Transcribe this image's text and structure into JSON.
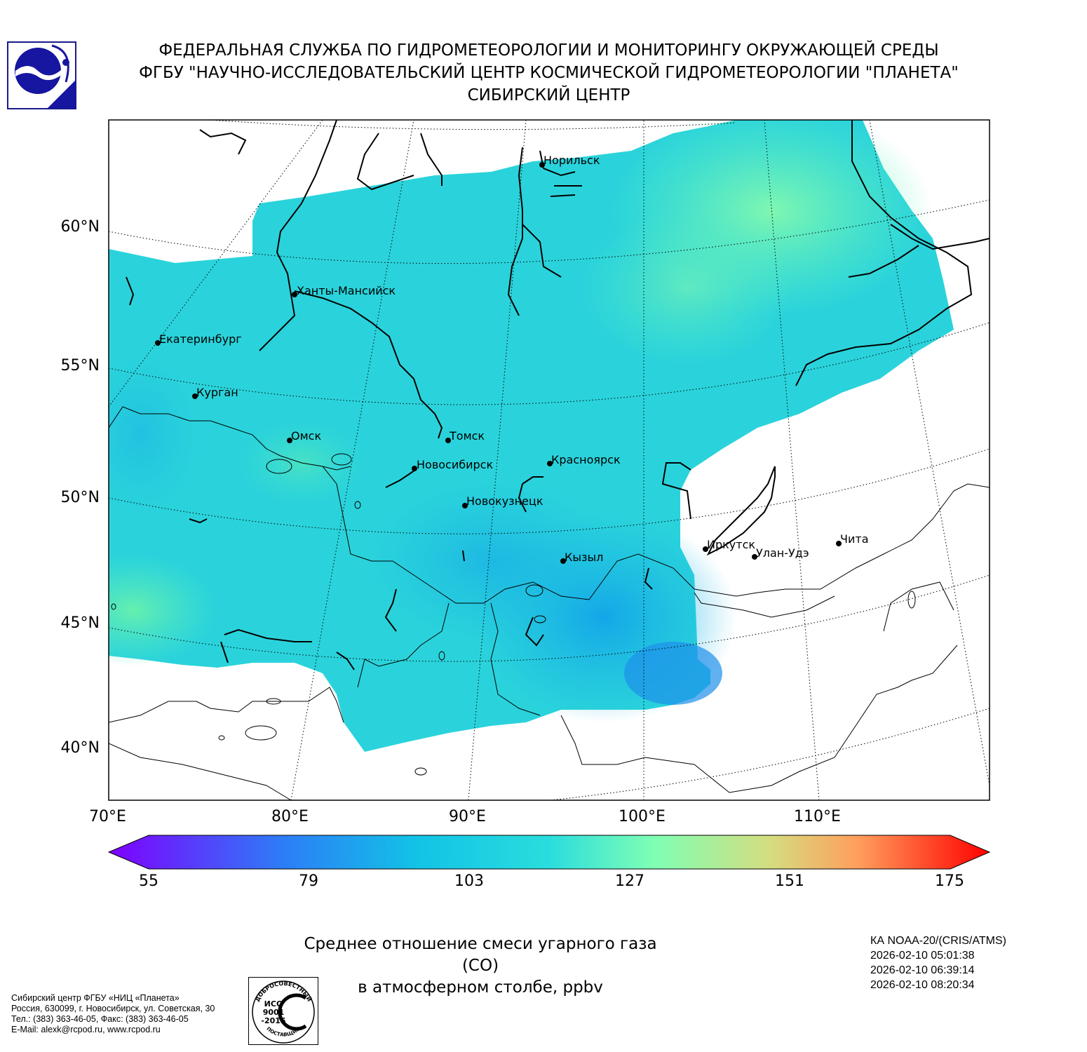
{
  "header": {
    "line1": "ФЕДЕРАЛЬНАЯ СЛУЖБА ПО ГИДРОМЕТЕОРОЛОГИИ И МОНИТОРИНГУ ОКРУЖАЮЩЕЙ СРЕДЫ",
    "line2": "ФГБУ \"НАУЧНО-ИССЛЕДОВАТЕЛЬСКИЙ ЦЕНТР КОСМИЧЕСКОЙ ГИДРОМЕТЕОРОЛОГИИ \"ПЛАНЕТА\"",
    "line3": "СИБИРСКИЙ ЦЕНТР"
  },
  "map": {
    "lat_labels": [
      "60°N",
      "55°N",
      "50°N",
      "45°N",
      "40°N"
    ],
    "lon_labels": [
      "70°E",
      "80°E",
      "90°E",
      "100°E",
      "110°E"
    ],
    "cities": [
      {
        "name": "Норильск"
      },
      {
        "name": "Ханты-Мансийск"
      },
      {
        "name": "Екатеринбург"
      },
      {
        "name": "Курган"
      },
      {
        "name": "Омск"
      },
      {
        "name": "Томск"
      },
      {
        "name": "Новосибирск"
      },
      {
        "name": "Красноярск"
      },
      {
        "name": "Новокузнецк"
      },
      {
        "name": "Кызыл"
      },
      {
        "name": "Иркутск"
      },
      {
        "name": "Улан-Удэ"
      },
      {
        "name": "Чита"
      }
    ]
  },
  "colorbar": {
    "min": 55,
    "max": 175,
    "ticks": [
      "55",
      "79",
      "103",
      "127",
      "151",
      "175"
    ],
    "colors": [
      "#7f00ff",
      "#2c7ef7",
      "#2adddd",
      "#80ffb4",
      "#d4dd80",
      "#ff7f41",
      "#ff0000"
    ]
  },
  "caption": {
    "line1": "Среднее отношение смеси угарного газа (CO)",
    "line2": "в атмосферном столбе, ppbv"
  },
  "satellite": {
    "name": "КА NOAA-20/(CRIS/ATMS)",
    "passes": [
      "2026-02-10 05:01:38",
      "2026-02-10 06:39:14",
      "2026-02-10 08:20:34"
    ]
  },
  "footer": {
    "line1": "Сибирский центр ФГБУ «НИЦ «Планета»",
    "line2": "Россия, 630099, г. Новосибирск, ул. Советская, 30",
    "line3": "Тел.: (383) 363-46-05, Факс: (383) 363-46-05",
    "line4": "E-Mail: alexk@rcpod.ru, www.rcpod.ru"
  },
  "iso_badge": {
    "top_text": "ДОБРОСОВЕСТНЫЙ",
    "bottom_text": "ПОСТАВЩИК",
    "line1": "ИСО",
    "line2": "9001",
    "line3": "-2015"
  }
}
